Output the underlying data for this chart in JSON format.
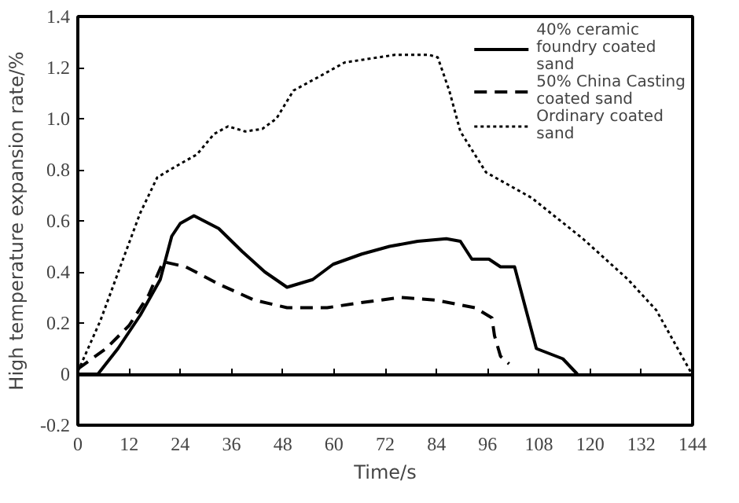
{
  "chart_data": {
    "type": "line",
    "xlabel": "Time/s",
    "ylabel": "High temperature expansion rate/%",
    "xlim": [
      0,
      144
    ],
    "ylim": [
      -0.2,
      1.4
    ],
    "xticks": [
      0,
      12,
      24,
      36,
      48,
      60,
      72,
      84,
      96,
      108,
      120,
      132,
      144
    ],
    "yticks": [
      -0.2,
      0,
      0.2,
      0.4,
      0.6,
      0.8,
      {
        "value": 1.0,
        "label": "1.0"
      },
      1.2,
      1.4
    ],
    "legend": "top right",
    "marker": "none",
    "series": [
      {
        "name": "40% ceramic foundry coated sand",
        "color": "#000000",
        "line_style": "solid",
        "x": [
          0,
          4.7,
          9.4,
          14.6,
          19.3,
          22,
          24,
          27.2,
          33,
          38.5,
          43.8,
          49,
          55,
          59.8,
          66.5,
          73,
          79.6,
          86.3,
          89.6,
          92.3,
          96.3,
          99,
          102.3,
          105,
          107.4,
          113.6,
          117
        ],
        "values": [
          0,
          0,
          0.1,
          0.23,
          0.37,
          0.54,
          0.59,
          0.62,
          0.57,
          0.48,
          0.4,
          0.34,
          0.37,
          0.43,
          0.47,
          0.5,
          0.52,
          0.53,
          0.52,
          0.45,
          0.45,
          0.42,
          0.42,
          0.25,
          0.1,
          0.06,
          0
        ]
      },
      {
        "name": "50% China Casting coated sand",
        "color": "#000000",
        "line_style": "dashed",
        "x": [
          0,
          6.6,
          12,
          16.6,
          20,
          25.3,
          33.3,
          41.3,
          49,
          58.4,
          66.4,
          75.6,
          83.7,
          93,
          97,
          97.6,
          99,
          101
        ],
        "values": [
          0.02,
          0.1,
          0.19,
          0.31,
          0.44,
          0.42,
          0.35,
          0.29,
          0.26,
          0.26,
          0.28,
          0.3,
          0.29,
          0.26,
          0.22,
          0.15,
          0.07,
          0.04
        ]
      },
      {
        "name": "Ordinary coated sand",
        "color": "#000000",
        "line_style": "dotted",
        "x": [
          0,
          5.3,
          10.6,
          14.6,
          18.6,
          22.6,
          27.9,
          31.9,
          35.2,
          39.2,
          43.2,
          46.5,
          50.5,
          57.1,
          62.5,
          66.4,
          74.3,
          82.3,
          84.3,
          87,
          89.6,
          95.6,
          106.3,
          118.3,
          128.9,
          135.5,
          143.5
        ],
        "values": [
          0.01,
          0.21,
          0.45,
          0.63,
          0.77,
          0.81,
          0.86,
          0.94,
          0.97,
          0.95,
          0.96,
          1.0,
          1.11,
          1.17,
          1.22,
          1.23,
          1.25,
          1.25,
          1.24,
          1.11,
          0.95,
          0.79,
          0.69,
          0.53,
          0.37,
          0.25,
          0.01
        ]
      }
    ]
  }
}
